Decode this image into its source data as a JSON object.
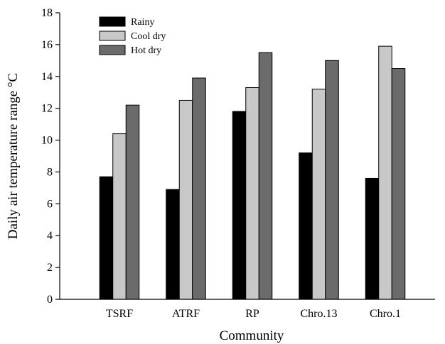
{
  "chart_data": {
    "type": "bar",
    "categories": [
      "TSRF",
      "ATRF",
      "RP",
      "Chro.13",
      "Chro.1"
    ],
    "series": [
      {
        "name": "Rainy",
        "color": "#000000",
        "values": [
          7.7,
          6.9,
          11.8,
          9.2,
          7.6
        ]
      },
      {
        "name": "Cool dry",
        "color": "#c8c8c8",
        "values": [
          10.4,
          12.5,
          13.3,
          13.2,
          15.9
        ]
      },
      {
        "name": "Hot dry",
        "color": "#6b6b6b",
        "values": [
          12.2,
          13.9,
          15.5,
          15.0,
          14.5
        ]
      }
    ],
    "xlabel": "Community",
    "ylabel": "Daily air temperature range °C",
    "ylim": [
      0,
      18
    ],
    "yticks": [
      "0",
      "2",
      "4",
      "6",
      "8",
      "10",
      "12",
      "14",
      "16",
      "18"
    ],
    "grid": false,
    "legend_position": "top-left"
  }
}
